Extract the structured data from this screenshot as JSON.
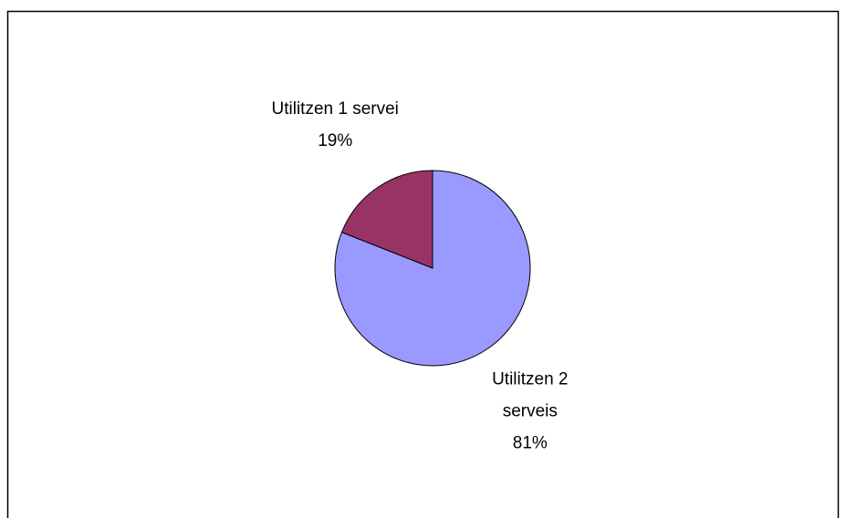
{
  "chart_data": {
    "type": "pie",
    "categories": [
      "Utilitzen 2 serveis",
      "Utilitzen 1 servei"
    ],
    "values": [
      81,
      19
    ],
    "value_labels": [
      "81%",
      "19%"
    ],
    "colors": [
      "#9999ff",
      "#993366"
    ]
  }
}
